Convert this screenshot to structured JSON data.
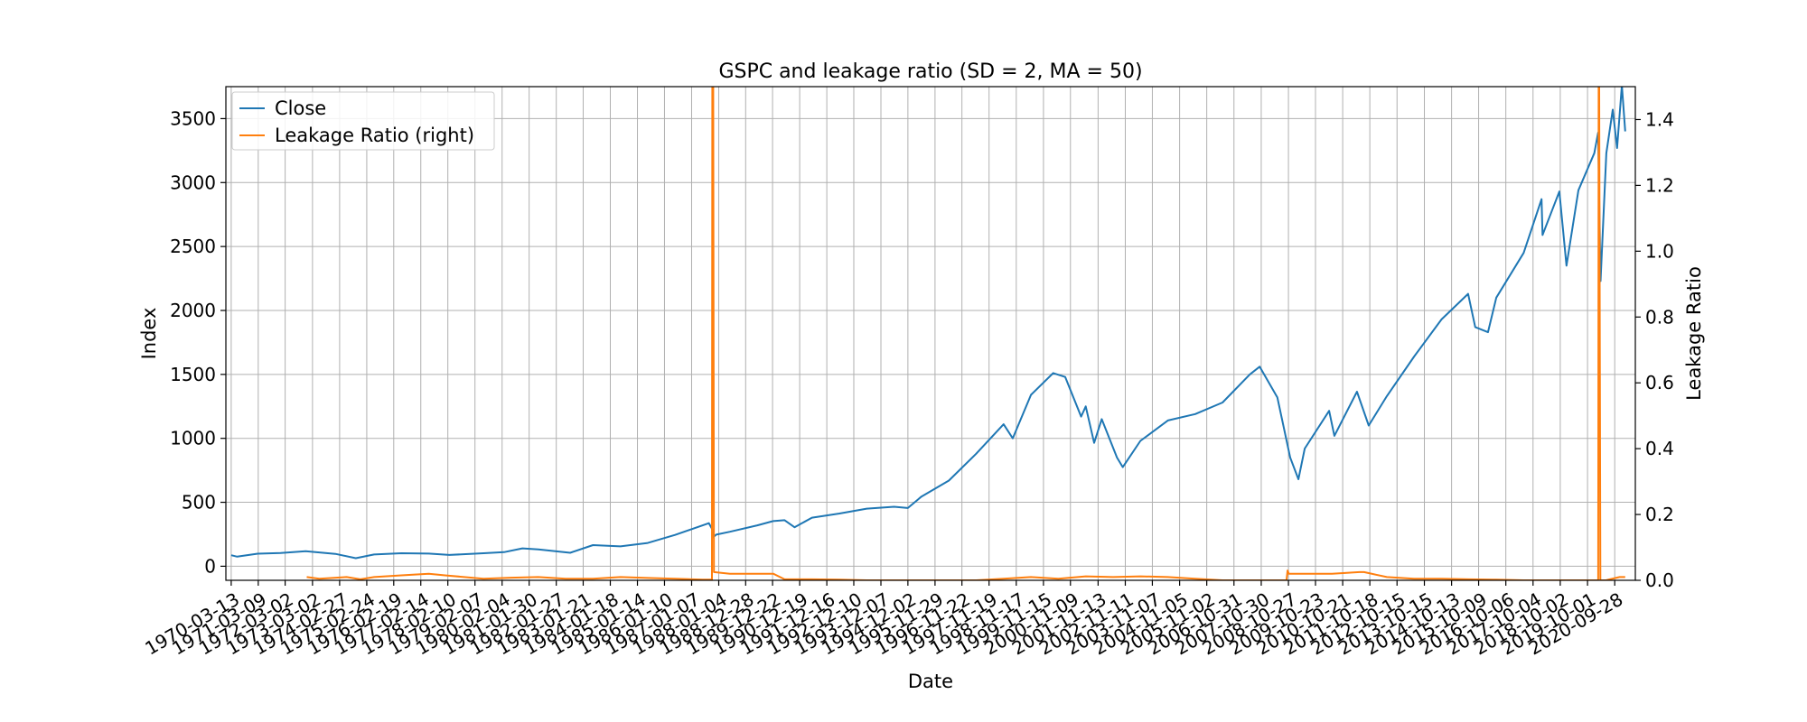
{
  "chart_data": {
    "type": "line",
    "title": "GSPC and leakage ratio (SD = 2, MA = 50)",
    "xlabel": "Date",
    "ylabel": "Index",
    "y2label": "Leakage Ratio",
    "legend_position": "top-left",
    "grid": true,
    "xlim": [
      "1970-01-01",
      "2021-06-30"
    ],
    "ylim": [
      -110,
      3750
    ],
    "y2lim": [
      0,
      1.5
    ],
    "yticks": [
      0,
      500,
      1000,
      1500,
      2000,
      2500,
      3000,
      3500
    ],
    "y2ticks": [
      0.0,
      0.2,
      0.4,
      0.6,
      0.8,
      1.0,
      1.2,
      1.4
    ],
    "xtick_labels": [
      "1970-03-13",
      "1971-03-09",
      "1972-03-02",
      "1973-03-02",
      "1974-02-27",
      "1975-02-24",
      "1976-02-19",
      "1977-02-14",
      "1978-02-10",
      "1979-02-07",
      "1980-02-04",
      "1981-01-30",
      "1982-01-27",
      "1983-01-21",
      "1984-01-18",
      "1985-01-14",
      "1986-01-10",
      "1987-01-07",
      "1988-01-04",
      "1988-12-28",
      "1989-12-22",
      "1990-12-19",
      "1991-12-16",
      "1992-12-10",
      "1993-12-07",
      "1994-12-02",
      "1995-11-29",
      "1996-11-22",
      "1997-11-19",
      "1998-11-17",
      "1999-11-15",
      "2000-11-09",
      "2001-11-13",
      "2002-11-11",
      "2003-11-07",
      "2004-11-05",
      "2005-11-02",
      "2006-10-31",
      "2007-10-30",
      "2008-10-27",
      "2009-10-23",
      "2010-10-21",
      "2011-10-18",
      "2012-10-15",
      "2013-10-15",
      "2014-10-13",
      "2015-10-09",
      "2016-10-06",
      "2017-10-04",
      "2018-10-02",
      "2019-10-01",
      "2020-09-28"
    ],
    "series": [
      {
        "name": "Close",
        "axis": "left",
        "color": "#1f77b4",
        "x": [
          "1970-03-13",
          "1970-06-01",
          "1971-03-01",
          "1972-01-01",
          "1972-12-01",
          "1973-06-01",
          "1974-01-01",
          "1974-10-01",
          "1975-06-01",
          "1976-06-01",
          "1977-06-01",
          "1978-03-01",
          "1979-06-01",
          "1980-03-01",
          "1980-11-01",
          "1981-06-01",
          "1982-08-01",
          "1983-06-01",
          "1984-06-01",
          "1985-06-01",
          "1986-06-01",
          "1987-08-25",
          "1987-10-16",
          "1987-10-19",
          "1987-12-01",
          "1988-06-01",
          "1989-06-01",
          "1989-12-29",
          "1990-06-01",
          "1990-10-11",
          "1991-06-01",
          "1992-06-01",
          "1993-06-01",
          "1994-06-01",
          "1994-12-01",
          "1995-06-01",
          "1996-06-01",
          "1997-06-01",
          "1998-06-01",
          "1998-10-01",
          "1999-06-01",
          "2000-03-24",
          "2000-09-01",
          "2001-04-01",
          "2001-06-01",
          "2001-09-21",
          "2002-01-01",
          "2002-07-23",
          "2002-10-09",
          "2003-06-01",
          "2004-06-01",
          "2005-06-01",
          "2006-06-01",
          "2007-06-01",
          "2007-10-09",
          "2008-06-01",
          "2008-11-20",
          "2009-03-09",
          "2009-06-01",
          "2010-04-23",
          "2010-07-02",
          "2011-04-29",
          "2011-10-03",
          "2012-06-01",
          "2013-06-01",
          "2014-06-01",
          "2015-05-21",
          "2015-08-25",
          "2016-02-11",
          "2016-06-01",
          "2017-06-01",
          "2018-01-26",
          "2018-02-08",
          "2018-09-20",
          "2018-12-24",
          "2019-06-01",
          "2019-12-31",
          "2020-02-19",
          "2020-03-23",
          "2020-06-08",
          "2020-09-02",
          "2020-10-30",
          "2021-01-01",
          "2021-02-15"
        ],
        "values": [
          86,
          75,
          98,
          103,
          118,
          108,
          97,
          63,
          92,
          102,
          99,
          88,
          102,
          110,
          140,
          132,
          105,
          165,
          155,
          182,
          245,
          337,
          282,
          225,
          247,
          270,
          320,
          353,
          360,
          305,
          380,
          412,
          450,
          465,
          455,
          545,
          670,
          880,
          1110,
          1000,
          1340,
          1510,
          1480,
          1170,
          1250,
          965,
          1150,
          850,
          775,
          980,
          1140,
          1190,
          1280,
          1500,
          1560,
          1320,
          850,
          680,
          920,
          1215,
          1020,
          1365,
          1100,
          1330,
          1640,
          1930,
          2130,
          1870,
          1830,
          2100,
          2450,
          2870,
          2590,
          2930,
          2350,
          2940,
          3230,
          3390,
          2230,
          3230,
          3570,
          3270,
          3760,
          3400
        ]
      },
      {
        "name": "Leakage Ratio (right)",
        "axis": "right",
        "color": "#ff7f0e",
        "x": [
          "1972-12-15",
          "1973-06-01",
          "1974-06-01",
          "1974-12-01",
          "1975-06-01",
          "1976-06-01",
          "1977-06-01",
          "1978-01-01",
          "1979-06-01",
          "1980-06-01",
          "1981-06-01",
          "1982-06-01",
          "1983-06-01",
          "1984-06-01",
          "1985-06-01",
          "1986-06-01",
          "1987-06-01",
          "1987-10-05",
          "1987-10-10",
          "1987-10-22",
          "1987-11-01",
          "1988-06-01",
          "1989-06-01",
          "1990-01-01",
          "1990-06-01",
          "1991-06-01",
          "1992-06-01",
          "1993-06-01",
          "1994-06-01",
          "1995-06-01",
          "1996-06-01",
          "1997-06-01",
          "1998-06-01",
          "1999-06-01",
          "2000-06-01",
          "2001-06-01",
          "2002-06-01",
          "2003-06-01",
          "2004-06-01",
          "2005-06-01",
          "2006-06-01",
          "2007-06-01",
          "2008-06-01",
          "2008-10-01",
          "2008-10-15",
          "2008-11-01",
          "2009-06-01",
          "2010-06-01",
          "2011-06-01",
          "2011-08-01",
          "2012-06-01",
          "2013-06-01",
          "2014-06-01",
          "2015-06-01",
          "2016-06-01",
          "2017-06-01",
          "2018-06-01",
          "2019-06-01",
          "2020-01-01",
          "2020-02-20",
          "2020-02-26",
          "2020-03-05",
          "2020-03-20",
          "2020-06-01",
          "2020-12-01",
          "2021-02-15"
        ],
        "values": [
          0.01,
          0.005,
          0.01,
          0.003,
          0.01,
          0.015,
          0.02,
          0.015,
          0.005,
          0.008,
          0.01,
          0.005,
          0.005,
          0.01,
          0.007,
          0.005,
          0.002,
          0.002,
          1.5,
          1.5,
          0.025,
          0.02,
          0.02,
          0.02,
          0.003,
          0.003,
          0.002,
          0.0,
          0.0,
          0.0,
          0.0,
          0.0,
          0.005,
          0.01,
          0.005,
          0.012,
          0.01,
          0.012,
          0.01,
          0.005,
          0.0,
          0.0,
          0.0,
          0.0,
          0.03,
          0.02,
          0.02,
          0.02,
          0.025,
          0.025,
          0.01,
          0.005,
          0.005,
          0.003,
          0.002,
          0.0,
          0.0,
          0.0,
          0.0,
          0.0,
          1.5,
          1.5,
          0.0,
          0.0,
          0.01,
          0.01
        ]
      }
    ]
  }
}
